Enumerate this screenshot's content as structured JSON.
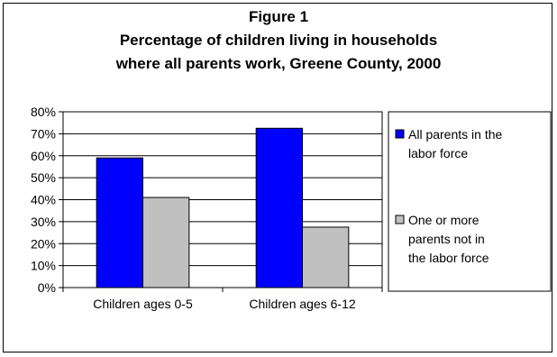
{
  "chart_data": {
    "type": "bar",
    "title_lines": [
      "Figure 1",
      "Percentage of children living in households",
      "where all parents work, Greene County, 2000"
    ],
    "categories": [
      "Children ages 0-5",
      "Children ages 6-12"
    ],
    "series": [
      {
        "name_lines": [
          "All parents in the",
          "labor force"
        ],
        "color": "#0000FF",
        "values": [
          0.59,
          0.725
        ]
      },
      {
        "name_lines": [
          "One or more",
          "parents not in",
          "the labor force"
        ],
        "color": "#C0C0C0",
        "values": [
          0.41,
          0.275
        ]
      }
    ],
    "ylim": [
      0,
      0.8
    ],
    "yticks": [
      "0%",
      "10%",
      "20%",
      "30%",
      "40%",
      "50%",
      "60%",
      "70%",
      "80%"
    ],
    "grid": true,
    "legend": "right"
  }
}
